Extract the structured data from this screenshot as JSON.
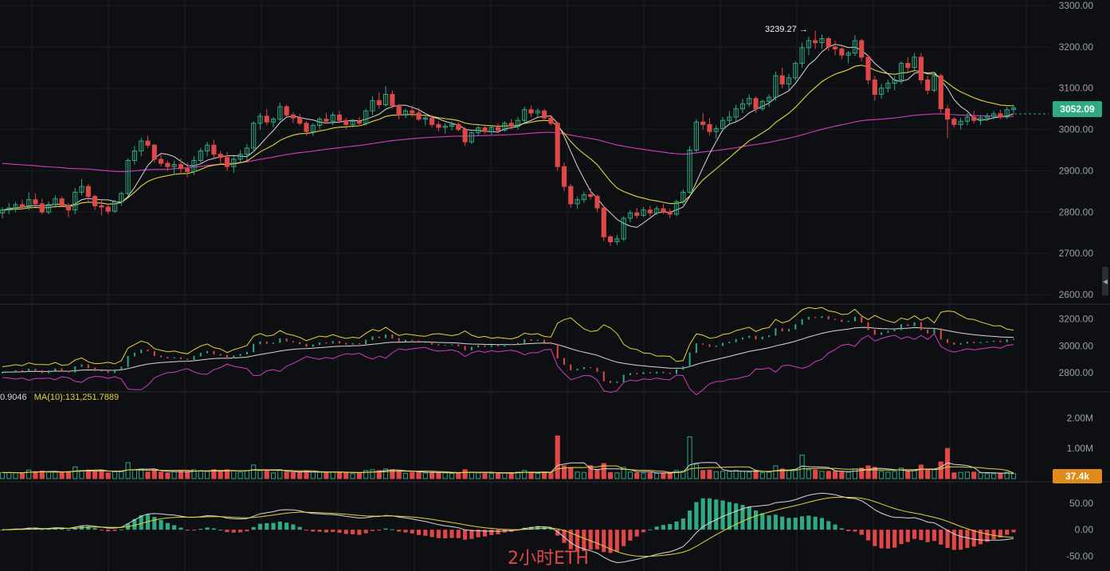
{
  "colors": {
    "background": "#0e0f12",
    "grid": "#1c1f24",
    "up": "#2eab82",
    "down": "#e04848",
    "ma_short": "#d9d9d9",
    "ma_long": "#e7d33a",
    "ma_magenta": "#d23cc4",
    "price_tag": "#2eab82",
    "volume_tag": "#e08a18"
  },
  "price_tag": "3052.09",
  "high_label": "3239.27",
  "high_arrow": "→",
  "volume_tag": "37.4k",
  "pane_label": {
    "left": "0.9046",
    "ma10": "MA(10):131,251.7889"
  },
  "watermark": "2小时ETH",
  "icons": {
    "collapse": "chevron-left-icon"
  },
  "chart_data": [
    {
      "type": "candlestick",
      "series_name": "ETH 2H",
      "y_ticks": [
        "3300.00",
        "3200.00",
        "3100.00",
        "3000.00",
        "2900.00",
        "2800.00",
        "2700.00",
        "2600.00"
      ],
      "ylim": [
        2600,
        3300
      ],
      "candles": [
        [
          2798,
          2812,
          2785,
          2805
        ],
        [
          2805,
          2822,
          2795,
          2810
        ],
        [
          2810,
          2825,
          2800,
          2818
        ],
        [
          2818,
          2830,
          2806,
          2812
        ],
        [
          2812,
          2848,
          2805,
          2830
        ],
        [
          2830,
          2845,
          2812,
          2820
        ],
        [
          2820,
          2832,
          2795,
          2800
        ],
        [
          2800,
          2826,
          2795,
          2818
        ],
        [
          2818,
          2840,
          2810,
          2832
        ],
        [
          2832,
          2838,
          2812,
          2815
        ],
        [
          2815,
          2822,
          2788,
          2805
        ],
        [
          2805,
          2858,
          2795,
          2848
        ],
        [
          2848,
          2880,
          2840,
          2862
        ],
        [
          2862,
          2868,
          2825,
          2838
        ],
        [
          2838,
          2842,
          2805,
          2815
        ],
        [
          2815,
          2830,
          2792,
          2812
        ],
        [
          2812,
          2820,
          2795,
          2802
        ],
        [
          2802,
          2830,
          2798,
          2825
        ],
        [
          2825,
          2850,
          2815,
          2845
        ],
        [
          2845,
          2930,
          2840,
          2925
        ],
        [
          2925,
          2960,
          2915,
          2948
        ],
        [
          2948,
          2980,
          2935,
          2972
        ],
        [
          2972,
          2985,
          2955,
          2962
        ],
        [
          2962,
          2965,
          2920,
          2928
        ],
        [
          2928,
          2940,
          2910,
          2918
        ],
        [
          2918,
          2925,
          2900,
          2910
        ],
        [
          2910,
          2925,
          2890,
          2915
        ],
        [
          2915,
          2930,
          2895,
          2905
        ],
        [
          2905,
          2920,
          2885,
          2898
        ],
        [
          2898,
          2935,
          2890,
          2925
        ],
        [
          2925,
          2955,
          2915,
          2948
        ],
        [
          2948,
          2970,
          2935,
          2962
        ],
        [
          2962,
          2975,
          2930,
          2940
        ],
        [
          2940,
          2948,
          2915,
          2932
        ],
        [
          2932,
          2945,
          2900,
          2910
        ],
        [
          2910,
          2935,
          2895,
          2928
        ],
        [
          2928,
          2950,
          2920,
          2940
        ],
        [
          2940,
          2965,
          2925,
          2955
        ],
        [
          2955,
          3020,
          2945,
          3015
        ],
        [
          3015,
          3040,
          3000,
          3032
        ],
        [
          3032,
          3050,
          3010,
          3018
        ],
        [
          3018,
          3030,
          3005,
          3025
        ],
        [
          3025,
          3065,
          3020,
          3055
        ],
        [
          3055,
          3060,
          3030,
          3035
        ],
        [
          3035,
          3042,
          3015,
          3028
        ],
        [
          3028,
          3038,
          3010,
          3015
        ],
        [
          3015,
          3020,
          2985,
          2995
        ],
        [
          2995,
          3015,
          2985,
          3010
        ],
        [
          3010,
          3030,
          3000,
          3025
        ],
        [
          3025,
          3040,
          3015,
          3020
        ],
        [
          3020,
          3042,
          3010,
          3035
        ],
        [
          3035,
          3045,
          3015,
          3022
        ],
        [
          3022,
          3028,
          3000,
          3012
        ],
        [
          3012,
          3025,
          3005,
          3020
        ],
        [
          3020,
          3030,
          3008,
          3015
        ],
        [
          3015,
          3050,
          3010,
          3045
        ],
        [
          3045,
          3080,
          3035,
          3070
        ],
        [
          3070,
          3090,
          3050,
          3060
        ],
        [
          3060,
          3105,
          3055,
          3085
        ],
        [
          3085,
          3095,
          3050,
          3058
        ],
        [
          3058,
          3062,
          3025,
          3035
        ],
        [
          3035,
          3050,
          3028,
          3045
        ],
        [
          3045,
          3058,
          3030,
          3040
        ],
        [
          3040,
          3052,
          3020,
          3025
        ],
        [
          3025,
          3035,
          3010,
          3028
        ],
        [
          3028,
          3035,
          3005,
          3012
        ],
        [
          3012,
          3020,
          2995,
          3005
        ],
        [
          3005,
          3015,
          2990,
          3008
        ],
        [
          3008,
          3020,
          2998,
          3012
        ],
        [
          3012,
          3018,
          2995,
          3000
        ],
        [
          3000,
          3005,
          2960,
          2970
        ],
        [
          2970,
          2995,
          2965,
          2992
        ],
        [
          2992,
          3010,
          2985,
          3004
        ],
        [
          3004,
          3012,
          2990,
          2995
        ],
        [
          2995,
          3010,
          2988,
          3005
        ],
        [
          3005,
          3015,
          2990,
          2998
        ],
        [
          2998,
          3020,
          2995,
          3015
        ],
        [
          3015,
          3025,
          3000,
          3008
        ],
        [
          3008,
          3030,
          3000,
          3022
        ],
        [
          3022,
          3055,
          3015,
          3048
        ],
        [
          3048,
          3058,
          3030,
          3040
        ],
        [
          3040,
          3052,
          3030,
          3045
        ],
        [
          3045,
          3050,
          3020,
          3028
        ],
        [
          3028,
          3035,
          3010,
          3015
        ],
        [
          3015,
          3018,
          2900,
          2910
        ],
        [
          2910,
          2920,
          2850,
          2862
        ],
        [
          2862,
          2868,
          2810,
          2820
        ],
        [
          2820,
          2838,
          2808,
          2830
        ],
        [
          2830,
          2850,
          2822,
          2842
        ],
        [
          2842,
          2858,
          2830,
          2838
        ],
        [
          2838,
          2842,
          2800,
          2810
        ],
        [
          2810,
          2815,
          2730,
          2740
        ],
        [
          2740,
          2745,
          2718,
          2728
        ],
        [
          2728,
          2745,
          2720,
          2735
        ],
        [
          2735,
          2790,
          2730,
          2785
        ],
        [
          2785,
          2805,
          2775,
          2798
        ],
        [
          2798,
          2810,
          2785,
          2792
        ],
        [
          2792,
          2812,
          2788,
          2805
        ],
        [
          2805,
          2815,
          2790,
          2798
        ],
        [
          2798,
          2815,
          2792,
          2808
        ],
        [
          2808,
          2820,
          2795,
          2800
        ],
        [
          2800,
          2808,
          2785,
          2795
        ],
        [
          2795,
          2830,
          2790,
          2825
        ],
        [
          2825,
          2855,
          2818,
          2848
        ],
        [
          2848,
          2960,
          2845,
          2950
        ],
        [
          2950,
          3025,
          2945,
          3018
        ],
        [
          3018,
          3040,
          3000,
          3012
        ],
        [
          3012,
          3028,
          2985,
          2995
        ],
        [
          2995,
          3010,
          2978,
          3002
        ],
        [
          3002,
          3030,
          2995,
          3022
        ],
        [
          3022,
          3045,
          3010,
          3030
        ],
        [
          3030,
          3060,
          3020,
          3050
        ],
        [
          3050,
          3075,
          3040,
          3062
        ],
        [
          3062,
          3085,
          3055,
          3075
        ],
        [
          3075,
          3080,
          3040,
          3050
        ],
        [
          3050,
          3072,
          3045,
          3068
        ],
        [
          3068,
          3085,
          3055,
          3078
        ],
        [
          3078,
          3140,
          3070,
          3130
        ],
        [
          3130,
          3150,
          3100,
          3110
        ],
        [
          3110,
          3135,
          3095,
          3125
        ],
        [
          3125,
          3165,
          3118,
          3160
        ],
        [
          3160,
          3210,
          3150,
          3198
        ],
        [
          3198,
          3225,
          3180,
          3215
        ],
        [
          3215,
          3239,
          3195,
          3210
        ],
        [
          3210,
          3230,
          3195,
          3220
        ],
        [
          3220,
          3225,
          3190,
          3200
        ],
        [
          3200,
          3215,
          3180,
          3195
        ],
        [
          3195,
          3200,
          3170,
          3180
        ],
        [
          3180,
          3190,
          3160,
          3185
        ],
        [
          3185,
          3228,
          3178,
          3215
        ],
        [
          3215,
          3220,
          3165,
          3175
        ],
        [
          3175,
          3180,
          3110,
          3120
        ],
        [
          3120,
          3130,
          3070,
          3085
        ],
        [
          3085,
          3110,
          3075,
          3100
        ],
        [
          3100,
          3120,
          3090,
          3112
        ],
        [
          3112,
          3130,
          3095,
          3120
        ],
        [
          3120,
          3165,
          3110,
          3160
        ],
        [
          3160,
          3175,
          3140,
          3150
        ],
        [
          3150,
          3185,
          3145,
          3175
        ],
        [
          3175,
          3185,
          3110,
          3120
        ],
        [
          3120,
          3130,
          3085,
          3095
        ],
        [
          3095,
          3140,
          3090,
          3130
        ],
        [
          3130,
          3135,
          3040,
          3050
        ],
        [
          3050,
          3060,
          2980,
          3025
        ],
        [
          3025,
          3030,
          3005,
          3012
        ],
        [
          3012,
          3028,
          3000,
          3020
        ],
        [
          3020,
          3040,
          3010,
          3030
        ],
        [
          3030,
          3045,
          3015,
          3022
        ],
        [
          3022,
          3035,
          3010,
          3028
        ],
        [
          3028,
          3040,
          3020,
          3032
        ],
        [
          3032,
          3045,
          3025,
          3038
        ],
        [
          3038,
          3048,
          3025,
          3030
        ],
        [
          3030,
          3055,
          3025,
          3048
        ],
        [
          3048,
          3060,
          3040,
          3052
        ]
      ]
    },
    {
      "type": "line",
      "series_name": "overview",
      "y_ticks": [
        "3200.00",
        "3000.00",
        "2800.00"
      ],
      "ylim": [
        2700,
        3250
      ]
    },
    {
      "type": "bar",
      "series_name": "volume",
      "y_ticks": [
        "2.00M",
        "1.00M"
      ],
      "ylim": [
        0,
        2400000
      ]
    },
    {
      "type": "bar",
      "series_name": "macd",
      "y_ticks": [
        "50.00",
        "0.00",
        "-50.00"
      ],
      "ylim": [
        -60,
        80
      ]
    }
  ]
}
